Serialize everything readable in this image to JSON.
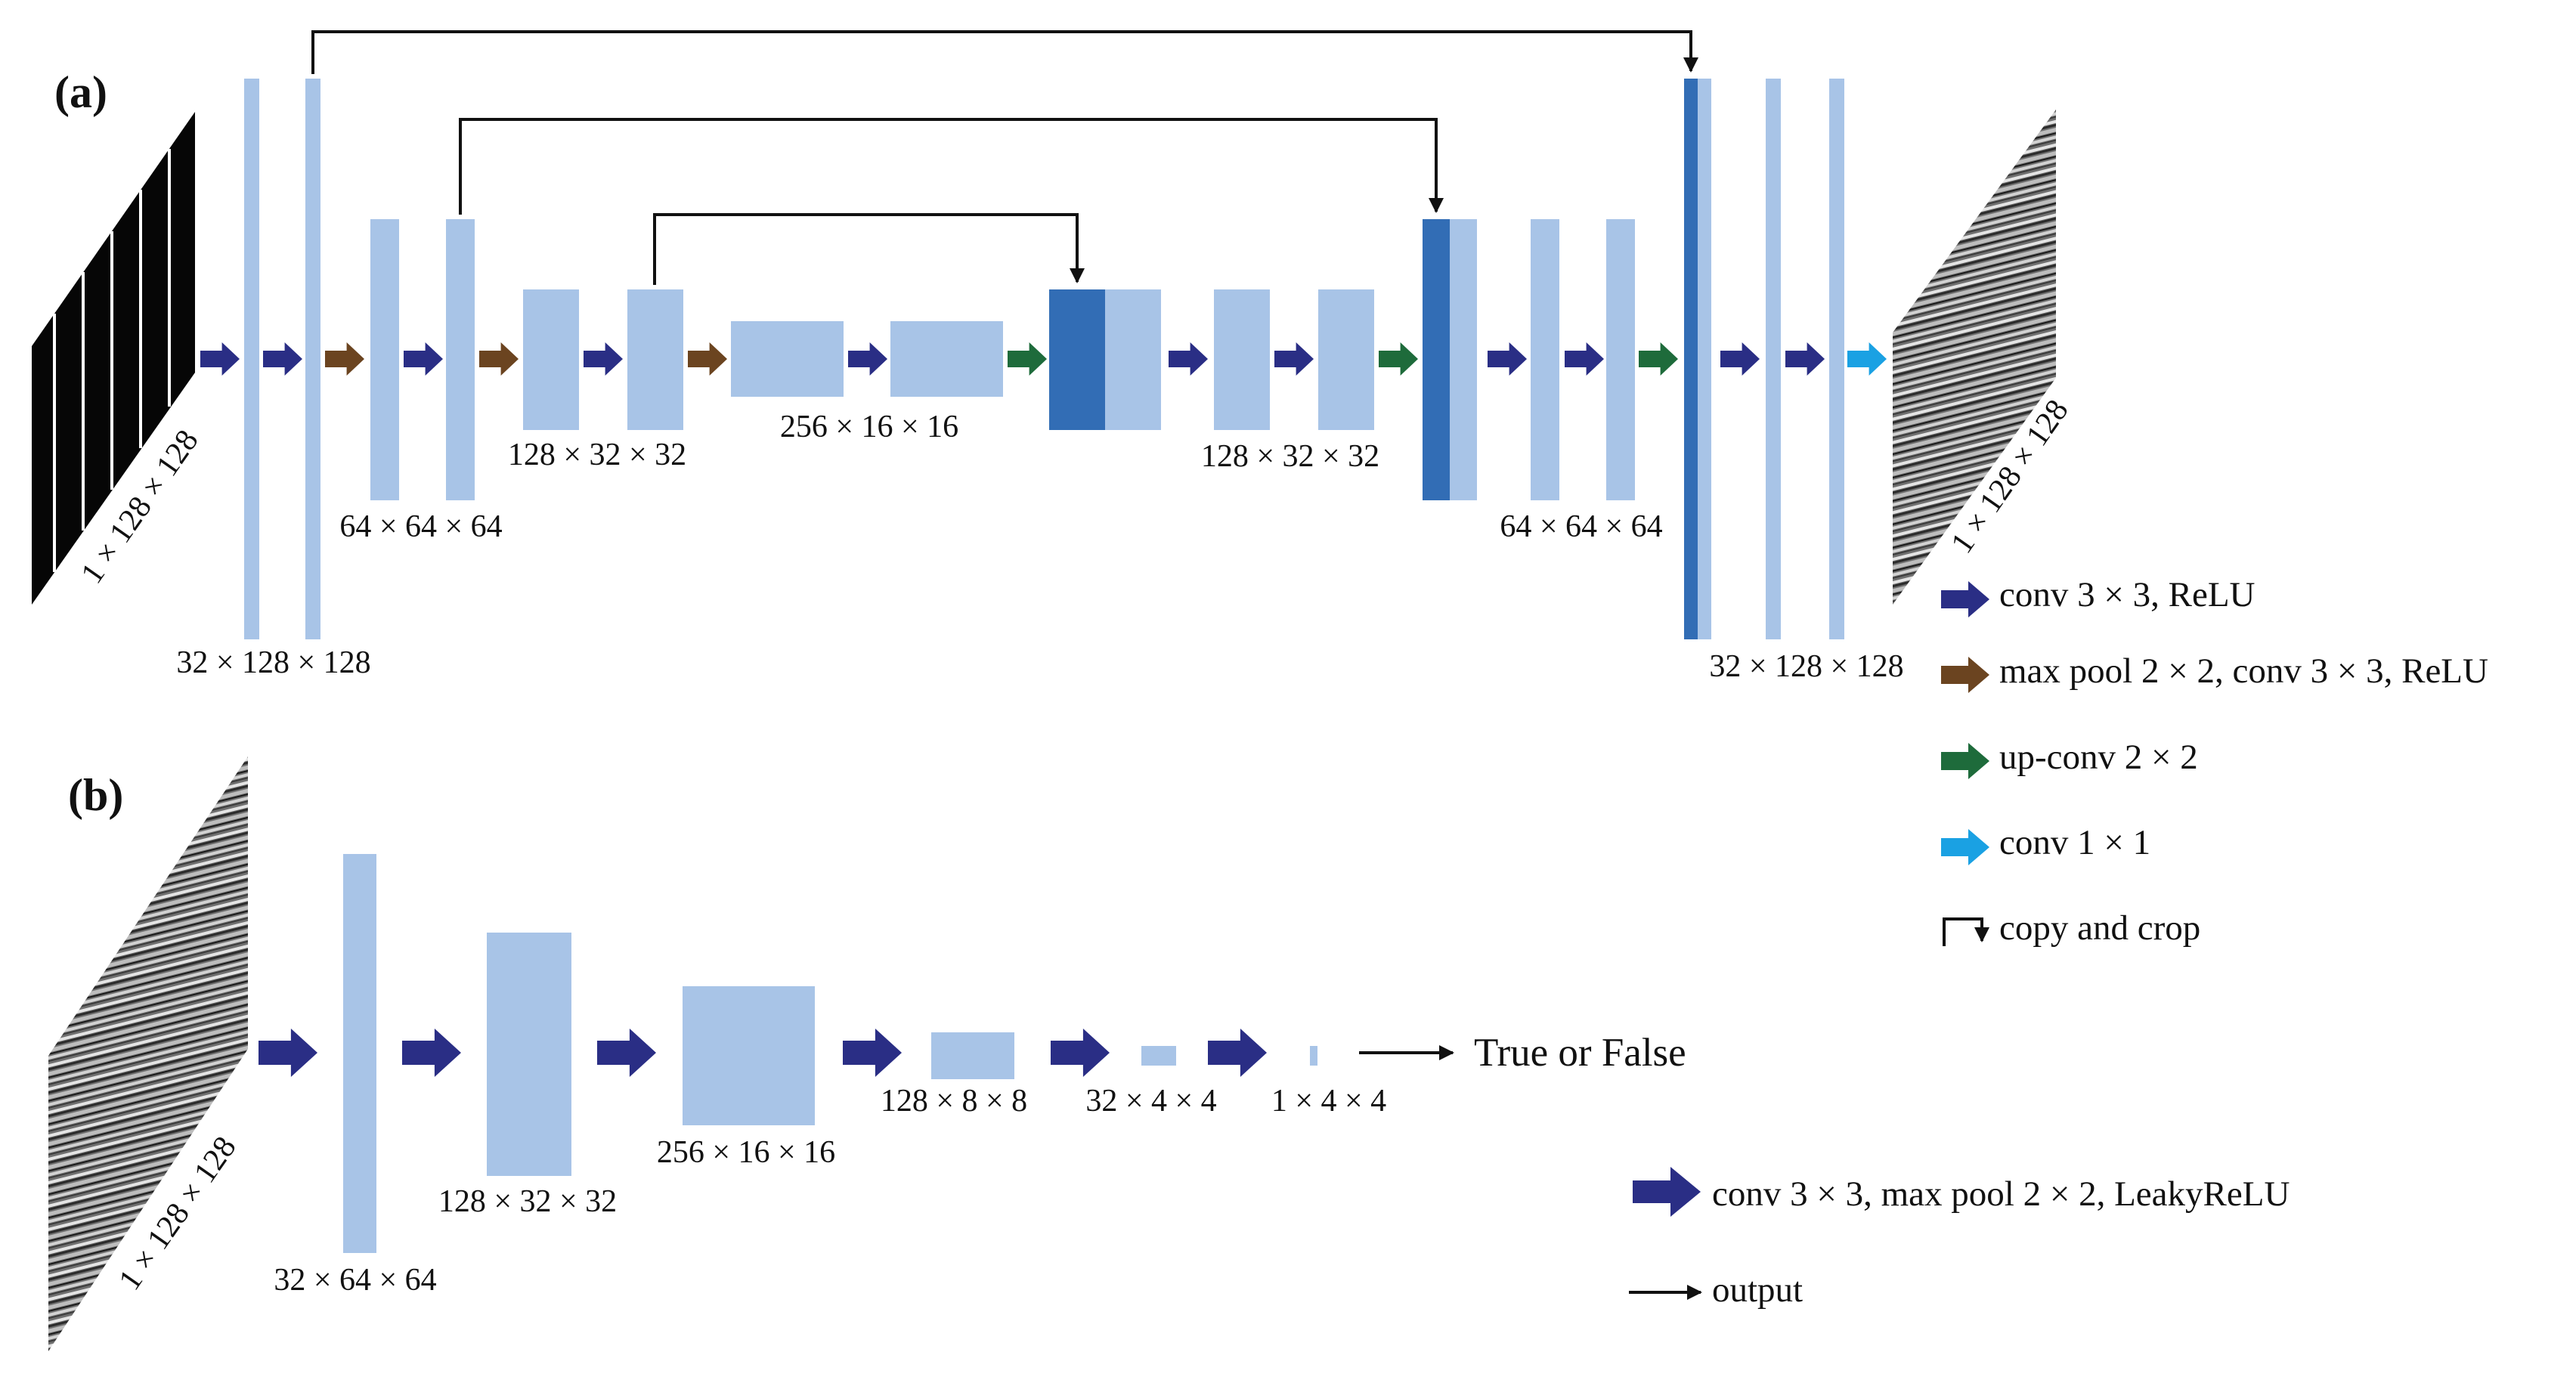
{
  "panels": {
    "a": {
      "label": "(a)",
      "input_label": "1 × 128 × 128",
      "output_label": "1 × 128 × 128",
      "dims": {
        "enc1": "32 × 128 × 128",
        "enc2": "64 × 64 × 64",
        "enc3": "128 × 32 × 32",
        "bottleneck": "256 × 16 × 16",
        "dec3": "128 × 32 × 32",
        "dec2": "64 × 64 × 64",
        "dec1": "32 × 128 × 128"
      },
      "legend": [
        {
          "arrow": "conv",
          "label": "conv 3 × 3, ReLU"
        },
        {
          "arrow": "maxpool",
          "label": "max pool 2 × 2, conv 3 × 3, ReLU"
        },
        {
          "arrow": "upconv",
          "label": "up-conv 2 × 2"
        },
        {
          "arrow": "conv1x1",
          "label": "conv 1 × 1"
        },
        {
          "arrow": "copy",
          "label": "copy and crop"
        }
      ]
    },
    "b": {
      "label": "(b)",
      "input_label": "1 × 128 × 128",
      "dims": {
        "l1": "32 × 64 × 64",
        "l2": "128 × 32 × 32",
        "l3": "256 × 16 × 16",
        "l4": "128 × 8 × 8",
        "l5": "32 × 4 × 4",
        "l6": "1 × 4 × 4"
      },
      "result": "True or False",
      "legend": [
        {
          "arrow": "conv-pool",
          "label": "conv 3 × 3, max pool 2 × 2, LeakyReLU"
        },
        {
          "arrow": "output",
          "label": "output"
        }
      ]
    }
  },
  "colors": {
    "feature_map": "#a8c4e7",
    "feature_map_copied": "#326db5",
    "arrow_conv": "#2a2e85",
    "arrow_maxpool": "#6b4420",
    "arrow_upconv": "#1e6b3b",
    "arrow_conv1x1": "#1aa1e3"
  }
}
